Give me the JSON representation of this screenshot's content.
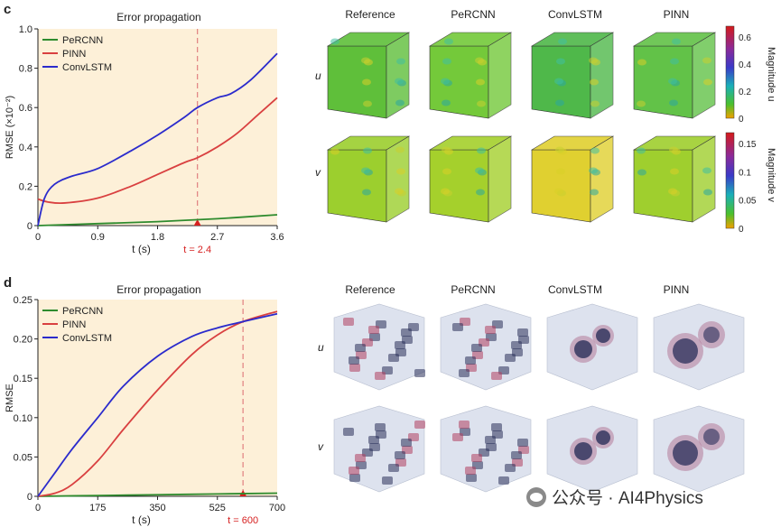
{
  "panels": {
    "c": {
      "letter": "c",
      "title": "Error propagation",
      "ylabel": "RMSE (×10⁻²)",
      "xlabel": "t (s)",
      "marker_label": "t = 2.4",
      "legend": [
        "PeRCNN",
        "PINN",
        "ConvLSTM"
      ],
      "columns": [
        "Reference",
        "PeRCNN",
        "ConvLSTM",
        "PINN"
      ],
      "rows": [
        "u",
        "v"
      ],
      "colorbars": [
        {
          "label": "Magnitude u",
          "ticks": [
            "0.6",
            "0.4",
            "0.2",
            "0"
          ]
        },
        {
          "label": "Magnitude v",
          "ticks": [
            "0.15",
            "0.1",
            "0.05",
            "0"
          ]
        }
      ]
    },
    "d": {
      "letter": "d",
      "title": "Error propagation",
      "ylabel": "RMSE",
      "xlabel": "t (s)",
      "marker_label": "t = 600",
      "legend": [
        "PeRCNN",
        "PINN",
        "ConvLSTM"
      ],
      "columns": [
        "Reference",
        "PeRCNN",
        "ConvLSTM",
        "PINN"
      ],
      "rows": [
        "u",
        "v"
      ]
    }
  },
  "watermark": "公众号 · AI4Physics",
  "chart_data": [
    {
      "type": "line",
      "title": "Error propagation",
      "xlabel": "t (s)",
      "ylabel": "RMSE (×10⁻²)",
      "xlim": [
        0,
        3.6
      ],
      "ylim": [
        0,
        1.0
      ],
      "xticks": [
        "0",
        "0.9",
        "1.8",
        "2.7",
        "3.6"
      ],
      "yticks": [
        "0",
        "0.2",
        "0.4",
        "0.6",
        "0.8",
        "1.0"
      ],
      "marker_x": 2.4,
      "series": [
        {
          "name": "PeRCNN",
          "color": "#2e8b2e",
          "x": [
            0,
            0.9,
            1.8,
            2.7,
            3.6
          ],
          "y": [
            0,
            0.01,
            0.02,
            0.035,
            0.055
          ]
        },
        {
          "name": "PINN",
          "color": "#d94040",
          "x": [
            0,
            0.15,
            0.4,
            0.9,
            1.4,
            1.8,
            2.2,
            2.4,
            2.7,
            3.0,
            3.3,
            3.6
          ],
          "y": [
            0.135,
            0.12,
            0.115,
            0.14,
            0.2,
            0.26,
            0.32,
            0.345,
            0.4,
            0.47,
            0.56,
            0.65
          ]
        },
        {
          "name": "ConvLSTM",
          "color": "#2b2bcc",
          "x": [
            0,
            0.1,
            0.25,
            0.5,
            0.9,
            1.4,
            1.8,
            2.2,
            2.4,
            2.7,
            2.9,
            3.2,
            3.6
          ],
          "y": [
            0,
            0.14,
            0.21,
            0.25,
            0.29,
            0.38,
            0.46,
            0.55,
            0.6,
            0.65,
            0.67,
            0.74,
            0.875
          ]
        }
      ]
    },
    {
      "type": "line",
      "title": "Error propagation",
      "xlabel": "t (s)",
      "ylabel": "RMSE",
      "xlim": [
        0,
        700
      ],
      "ylim": [
        0,
        0.25
      ],
      "xticks": [
        "0",
        "175",
        "350",
        "525",
        "700"
      ],
      "yticks": [
        "0",
        "0.05",
        "0.10",
        "0.15",
        "0.20",
        "0.25"
      ],
      "marker_x": 600,
      "series": [
        {
          "name": "PeRCNN",
          "color": "#2e8b2e",
          "x": [
            0,
            175,
            350,
            525,
            700
          ],
          "y": [
            0,
            0.001,
            0.002,
            0.003,
            0.004
          ]
        },
        {
          "name": "PINN",
          "color": "#d94040",
          "x": [
            0,
            50,
            100,
            175,
            250,
            350,
            450,
            525,
            600,
            700
          ],
          "y": [
            0,
            0.004,
            0.015,
            0.045,
            0.085,
            0.135,
            0.18,
            0.205,
            0.222,
            0.235
          ]
        },
        {
          "name": "ConvLSTM",
          "color": "#2b2bcc",
          "x": [
            0,
            50,
            100,
            175,
            250,
            350,
            450,
            525,
            600,
            700
          ],
          "y": [
            0,
            0.03,
            0.06,
            0.1,
            0.14,
            0.178,
            0.203,
            0.214,
            0.222,
            0.232
          ]
        }
      ]
    }
  ]
}
